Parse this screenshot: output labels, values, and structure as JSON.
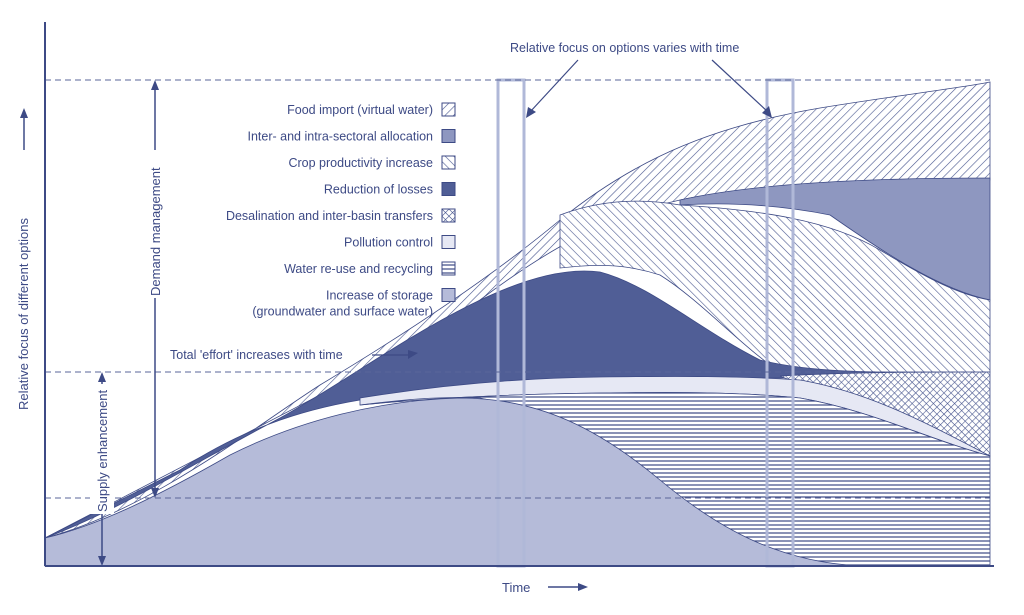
{
  "chart_data": {
    "type": "area",
    "title": "Relative focus on options varies with time",
    "xlabel": "Time",
    "ylabel": "Relative focus of different options",
    "annotations": {
      "top": "Relative focus on options varies with time",
      "effort": "Total 'effort' increases with time",
      "demand_bracket": "Demand management",
      "supply_bracket": "Supply enhancement"
    },
    "series": [
      {
        "name": "Food import (virtual water)",
        "pattern": "diag-fwd"
      },
      {
        "name": "Inter- and intra-sectoral allocation",
        "pattern": "solid-mid"
      },
      {
        "name": "Crop productivity increase",
        "pattern": "diag-back"
      },
      {
        "name": "Reduction of losses",
        "pattern": "solid-dark"
      },
      {
        "name": "Desalination and inter-basin transfers",
        "pattern": "crosshatch"
      },
      {
        "name": "Pollution control",
        "pattern": "solid-pale"
      },
      {
        "name": "Water re-use and recycling",
        "pattern": "horizontal"
      },
      {
        "name": "Increase of storage\n(groundwater and surface water)",
        "pattern": "solid-light"
      }
    ]
  }
}
